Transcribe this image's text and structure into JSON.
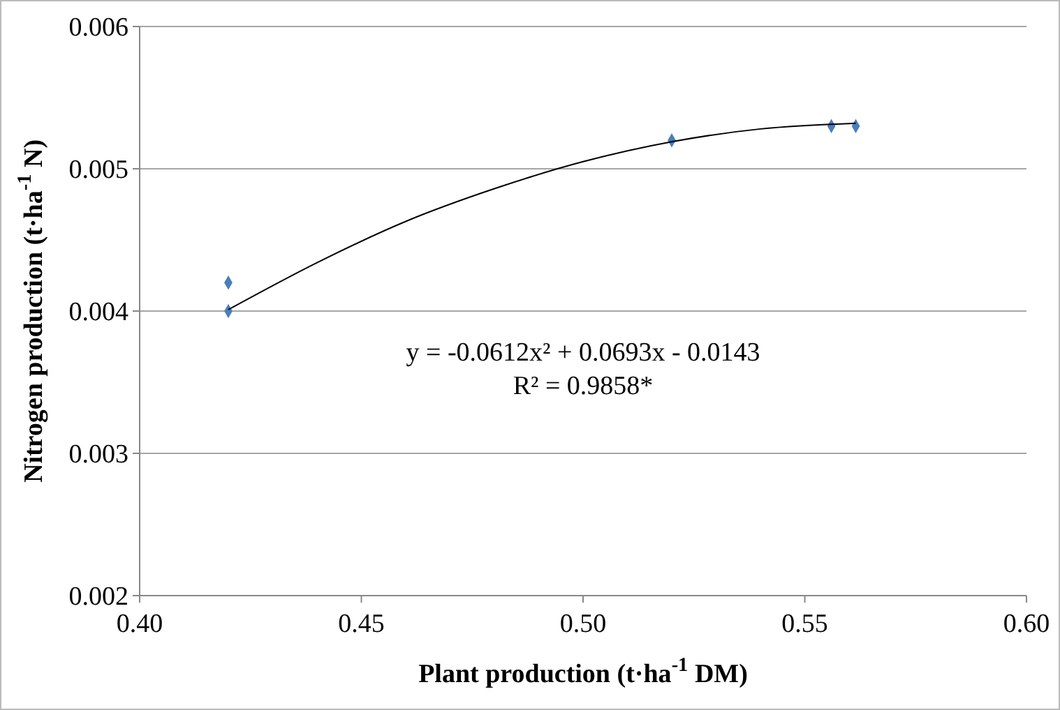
{
  "chart_data": {
    "type": "scatter",
    "xlabel": "Plant production (t·ha$^{-1}$ DM)",
    "ylabel": "Nitrogen production (t·ha$^{-1}$ N)",
    "xlim": [
      0.4,
      0.6
    ],
    "xticks": [
      {
        "value": 0.4,
        "label": "0.40"
      },
      {
        "value": 0.45,
        "label": "0.45"
      },
      {
        "value": 0.5,
        "label": "0.50"
      },
      {
        "value": 0.55,
        "label": "0.55"
      },
      {
        "value": 0.6,
        "label": "0.60"
      }
    ],
    "ylim": [
      0.002,
      0.006
    ],
    "yticks": [
      {
        "value": 0.002,
        "label": "0.002"
      },
      {
        "value": 0.003,
        "label": "0.003"
      },
      {
        "value": 0.004,
        "label": "0.004"
      },
      {
        "value": 0.005,
        "label": "0.005"
      },
      {
        "value": 0.006,
        "label": "0.006"
      }
    ],
    "grid": "y",
    "series": [
      {
        "color": "#4a7ebb",
        "marker": "diamond",
        "x": [
          0.42,
          0.42,
          0.52,
          0.556,
          0.5615
        ],
        "values": [
          0.0042,
          0.004,
          0.0052,
          0.0053,
          0.0053
        ]
      },
      {
        "type": "line",
        "color": "#000000",
        "marker": "none",
        "line_style": "solid",
        "x": [
          0.42,
          0.44,
          0.46,
          0.48,
          0.5,
          0.52,
          0.54,
          0.5615
        ],
        "values": [
          0.00401,
          0.00434,
          0.00463,
          0.00486,
          0.00505,
          0.00519,
          0.00528,
          0.00532
        ]
      }
    ],
    "annotations": [
      "y = -0.0612x²  + 0.0693x - 0.0143",
      "R² = 0.9858*"
    ]
  }
}
